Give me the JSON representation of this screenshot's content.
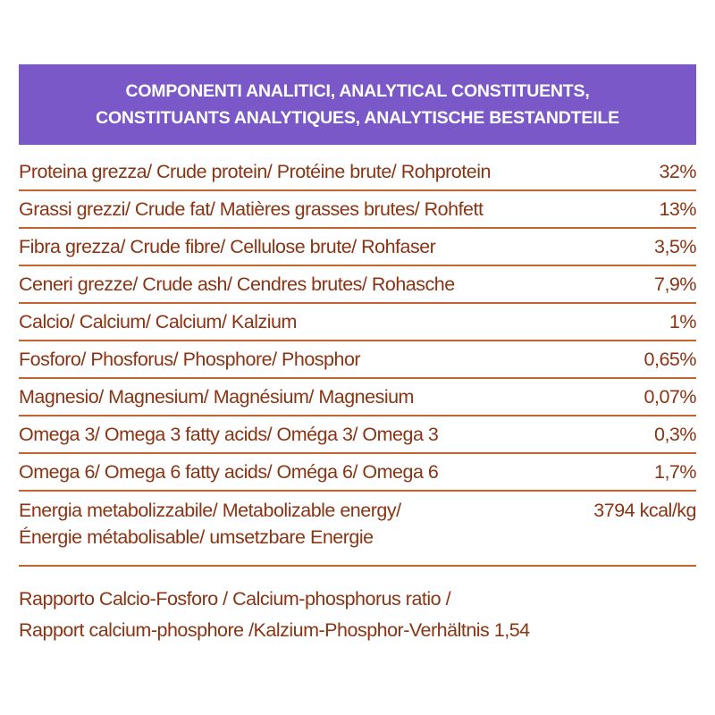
{
  "header": {
    "line1": "COMPONENTI ANALITICI, ANALYTICAL CONSTITUENTS,",
    "line2": "CONSTITUANTS ANALYTIQUES, ANALYTISCHE BESTANDTEILE"
  },
  "rows": [
    {
      "label": "Proteina grezza/ Crude protein/ Protéine brute/ Rohprotein",
      "value": "32%"
    },
    {
      "label": "Grassi grezzi/ Crude fat/ Matières grasses brutes/ Rohfett",
      "value": "13%"
    },
    {
      "label": "Fibra grezza/ Crude fibre/ Cellulose brute/ Rohfaser",
      "value": "3,5%"
    },
    {
      "label": "Ceneri grezze/ Crude ash/ Cendres brutes/ Rohasche",
      "value": "7,9%"
    },
    {
      "label": "Calcio/ Calcium/ Calcium/ Kalzium",
      "value": "1%"
    },
    {
      "label": "Fosforo/ Phosforus/ Phosphore/ Phosphor",
      "value": "0,65%"
    },
    {
      "label": "Magnesio/ Magnesium/ Magnésium/ Magnesium",
      "value": "0,07%"
    },
    {
      "label": "Omega 3/ Omega 3 fatty acids/ Oméga 3/ Omega 3",
      "value": "0,3%"
    },
    {
      "label": "Omega 6/ Omega 6 fatty acids/ Oméga 6/ Omega 6",
      "value": "1,7%"
    }
  ],
  "energy": {
    "label_line1": "Energia metabolizzabile/ Metabolizable energy/",
    "label_line2": "Énergie métabolisable/ umsetzbare Energie",
    "value": "3794 kcal/kg"
  },
  "footer": {
    "line1": "Rapporto Calcio-Fosforo / Calcium-phosphorus ratio /",
    "line2": "Rapport calcium-phosphore /Kalzium-Phosphor-Verhältnis 1,54"
  }
}
